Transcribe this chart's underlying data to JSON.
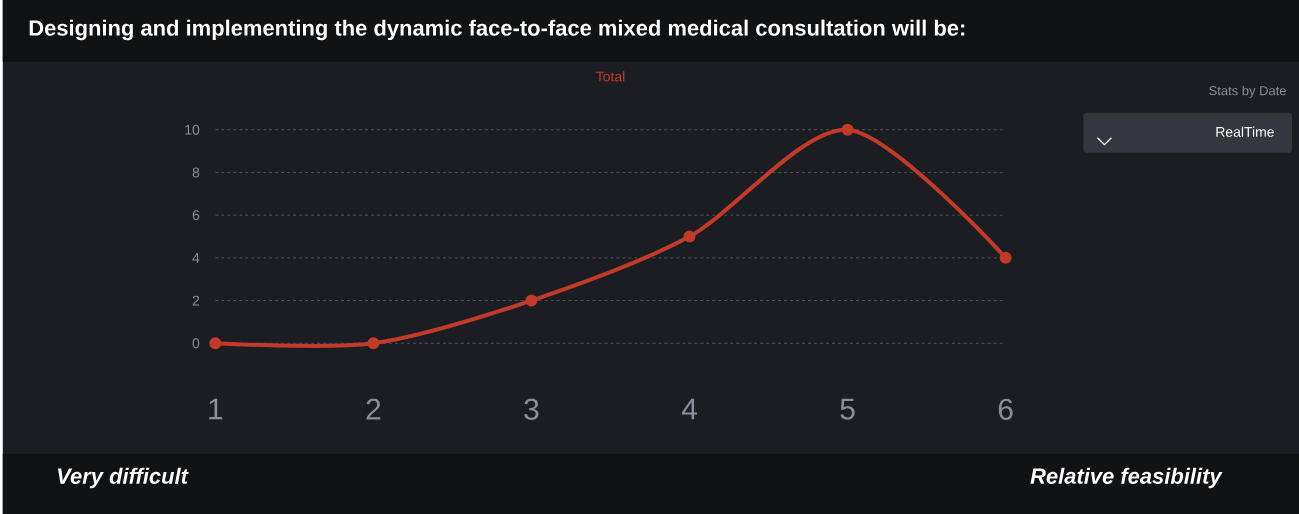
{
  "chart_data": {
    "type": "line",
    "title": "Designing and implementing the dynamic face-to-face mixed medical consultation will be:",
    "categories": [
      "1",
      "2",
      "3",
      "4",
      "5",
      "6"
    ],
    "series": [
      {
        "name": "Total",
        "color": "#c23a2a",
        "values": [
          0,
          0,
          2,
          5,
          10,
          4
        ]
      }
    ],
    "ylim": [
      0,
      10
    ],
    "yticks": [
      0,
      2,
      4,
      6,
      8,
      10
    ],
    "grid": "y",
    "legend": "top",
    "marker": "circle",
    "line_style": "solid",
    "annotations": [
      "Stats by Date",
      "RealTime",
      "Very difficult",
      "Relative feasibility"
    ]
  }
}
